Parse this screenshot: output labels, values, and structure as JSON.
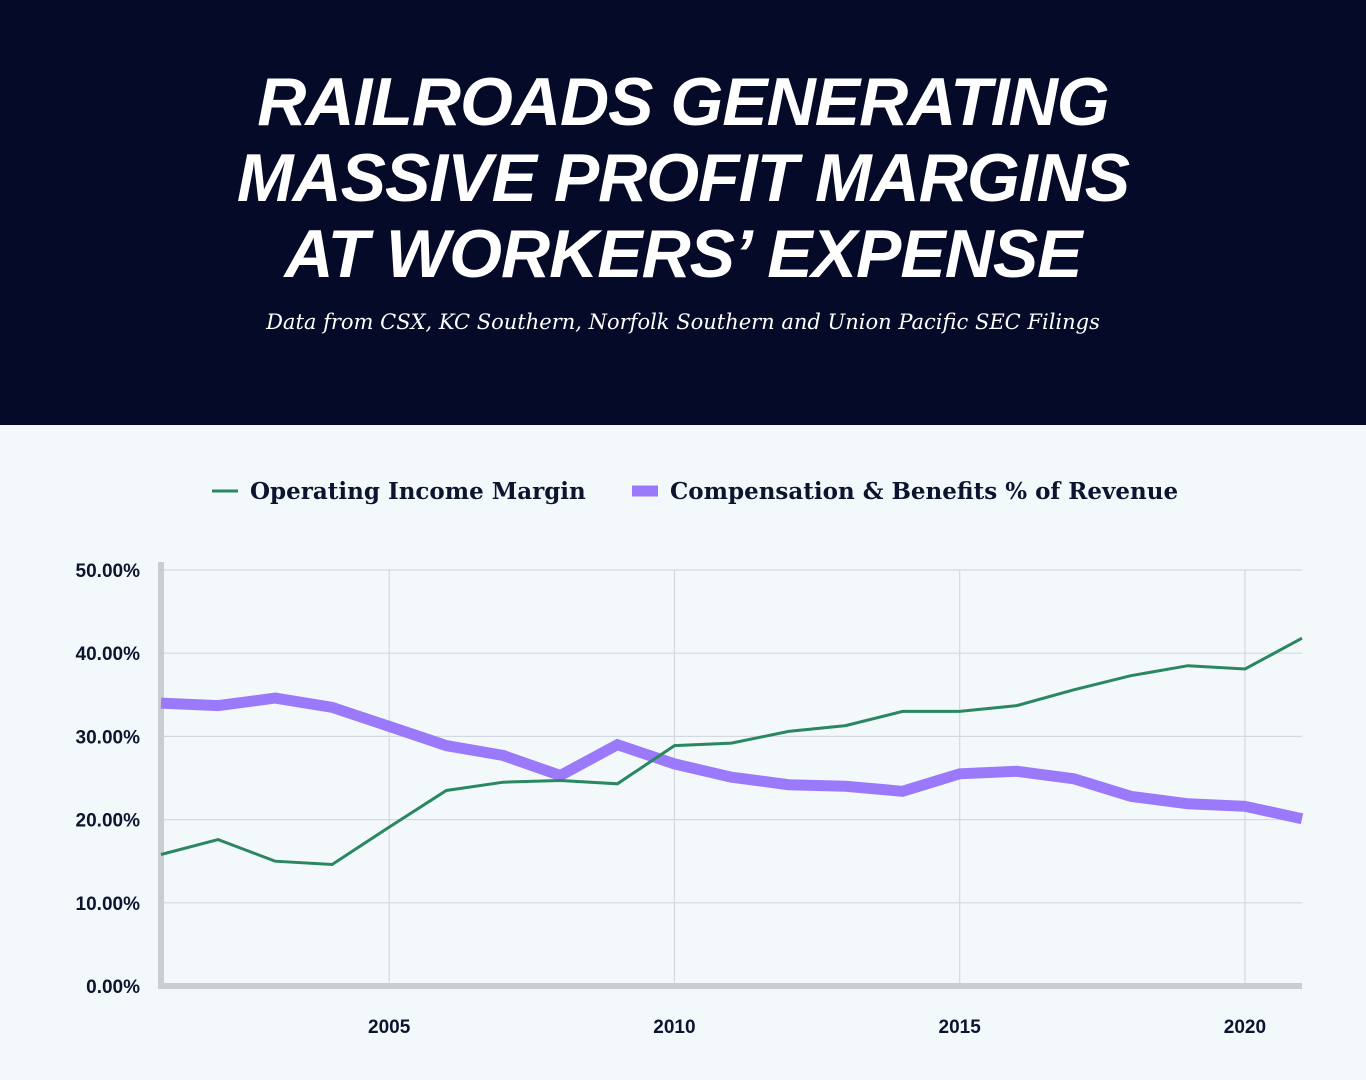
{
  "header": {
    "title_lines": [
      "RAILROADS GENERATING",
      "MASSIVE PROFIT MARGINS",
      "AT WORKERS’ EXPENSE"
    ],
    "subtitle": "Data from CSX, KC Southern, Norfolk Southern and Union Pacific SEC Filings"
  },
  "colors": {
    "header_bg": "#040a27",
    "page_bg": "#f3f9fb",
    "green": "#2a8760",
    "purple": "#9b79fb"
  },
  "chart_data": {
    "type": "line",
    "title": "RAILROADS GENERATING MASSIVE PROFIT MARGINS AT WORKERS’ EXPENSE",
    "xlabel": "",
    "ylabel": "",
    "xlim": [
      2001,
      2021
    ],
    "ylim": [
      0,
      50
    ],
    "x_ticks": [
      2005,
      2010,
      2015,
      2020
    ],
    "y_ticks": [
      0,
      10,
      20,
      30,
      40,
      50
    ],
    "y_tick_labels": [
      "0.00%",
      "10.00%",
      "20.00%",
      "30.00%",
      "40.00%",
      "50.00%"
    ],
    "grid": true,
    "legend_position": "top-center",
    "x": [
      2001,
      2002,
      2003,
      2004,
      2005,
      2006,
      2007,
      2008,
      2009,
      2010,
      2011,
      2012,
      2013,
      2014,
      2015,
      2016,
      2017,
      2018,
      2019,
      2020,
      2021
    ],
    "series": [
      {
        "name": "Operating Income Margin",
        "color": "#2a8760",
        "values": [
          15.8,
          17.6,
          15.0,
          14.6,
          19.1,
          23.5,
          24.5,
          24.7,
          24.3,
          28.9,
          29.2,
          30.6,
          31.3,
          33.0,
          33.0,
          33.7,
          35.6,
          37.3,
          38.5,
          38.1,
          41.8
        ]
      },
      {
        "name": "Compensation & Benefits % of Revenue",
        "color": "#9b79fb",
        "values": [
          34.0,
          33.7,
          34.6,
          33.5,
          31.2,
          28.9,
          27.7,
          25.3,
          29.0,
          26.7,
          25.1,
          24.2,
          24.0,
          23.4,
          25.5,
          25.8,
          24.9,
          22.8,
          21.9,
          21.6,
          20.1
        ]
      }
    ]
  }
}
